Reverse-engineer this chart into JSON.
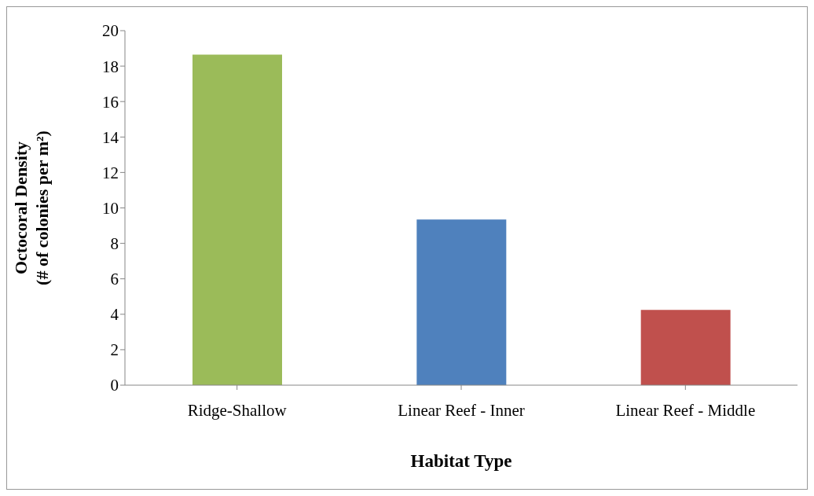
{
  "chart_data": {
    "type": "bar",
    "xlabel": "Habitat Type",
    "ylabel": [
      "Octocoral Density",
      "(# of colonies per m²)"
    ],
    "categories": [
      "Ridge-Shallow",
      "Linear Reef - Inner",
      "Linear Reef - Middle"
    ],
    "values": [
      18.65,
      9.35,
      4.25
    ],
    "colors": [
      "#9bbb59",
      "#4f81bd",
      "#c0504d"
    ],
    "ylim": [
      0,
      20
    ],
    "yticks": [
      0,
      2,
      4,
      6,
      8,
      10,
      12,
      14,
      16,
      18,
      20
    ],
    "grid": false
  }
}
